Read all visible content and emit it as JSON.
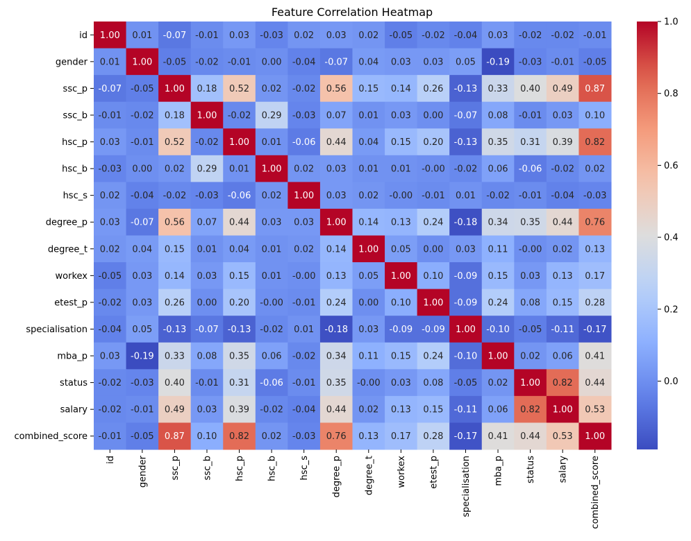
{
  "chart_data": {
    "type": "heatmap",
    "title": "Feature Correlation Heatmap",
    "xlabel": "",
    "ylabel": "",
    "labels": [
      "id",
      "gender",
      "ssc_p",
      "ssc_b",
      "hsc_p",
      "hsc_b",
      "hsc_s",
      "degree_p",
      "degree_t",
      "workex",
      "etest_p",
      "specialisation",
      "mba_p",
      "status",
      "salary",
      "combined_score"
    ],
    "values": [
      [
        1.0,
        0.01,
        -0.07,
        -0.01,
        0.03,
        -0.03,
        0.02,
        0.03,
        0.02,
        -0.05,
        -0.02,
        -0.04,
        0.03,
        -0.02,
        -0.02,
        -0.01
      ],
      [
        0.01,
        1.0,
        -0.05,
        -0.02,
        -0.01,
        0.0,
        -0.04,
        -0.07,
        0.04,
        0.03,
        0.03,
        0.05,
        -0.19,
        -0.03,
        -0.01,
        -0.05
      ],
      [
        -0.07,
        -0.05,
        1.0,
        0.18,
        0.52,
        0.02,
        -0.02,
        0.56,
        0.15,
        0.14,
        0.26,
        -0.13,
        0.33,
        0.4,
        0.49,
        0.87
      ],
      [
        -0.01,
        -0.02,
        0.18,
        1.0,
        -0.02,
        0.29,
        -0.03,
        0.07,
        0.01,
        0.03,
        0.0,
        -0.07,
        0.08,
        -0.01,
        0.03,
        0.1
      ],
      [
        0.03,
        -0.01,
        0.52,
        -0.02,
        1.0,
        0.01,
        -0.06,
        0.44,
        0.04,
        0.15,
        0.2,
        -0.13,
        0.35,
        0.31,
        0.39,
        0.82
      ],
      [
        -0.03,
        0.0,
        0.02,
        0.29,
        0.01,
        1.0,
        0.02,
        0.03,
        0.01,
        0.01,
        -0.0,
        -0.02,
        0.06,
        -0.06,
        -0.02,
        0.02
      ],
      [
        0.02,
        -0.04,
        -0.02,
        -0.03,
        -0.06,
        0.02,
        1.0,
        0.03,
        0.02,
        -0.0,
        -0.01,
        0.01,
        -0.02,
        -0.01,
        -0.04,
        -0.03
      ],
      [
        0.03,
        -0.07,
        0.56,
        0.07,
        0.44,
        0.03,
        0.03,
        1.0,
        0.14,
        0.13,
        0.24,
        -0.18,
        0.34,
        0.35,
        0.44,
        0.76
      ],
      [
        0.02,
        0.04,
        0.15,
        0.01,
        0.04,
        0.01,
        0.02,
        0.14,
        1.0,
        0.05,
        0.0,
        0.03,
        0.11,
        -0.0,
        0.02,
        0.13
      ],
      [
        -0.05,
        0.03,
        0.14,
        0.03,
        0.15,
        0.01,
        -0.0,
        0.13,
        0.05,
        1.0,
        0.1,
        -0.09,
        0.15,
        0.03,
        0.13,
        0.17
      ],
      [
        -0.02,
        0.03,
        0.26,
        0.0,
        0.2,
        -0.0,
        -0.01,
        0.24,
        0.0,
        0.1,
        1.0,
        -0.09,
        0.24,
        0.08,
        0.15,
        0.28
      ],
      [
        -0.04,
        0.05,
        -0.13,
        -0.07,
        -0.13,
        -0.02,
        0.01,
        -0.18,
        0.03,
        -0.09,
        -0.09,
        1.0,
        -0.1,
        -0.05,
        -0.11,
        -0.17
      ],
      [
        0.03,
        -0.19,
        0.33,
        0.08,
        0.35,
        0.06,
        -0.02,
        0.34,
        0.11,
        0.15,
        0.24,
        -0.1,
        1.0,
        0.02,
        0.06,
        0.41
      ],
      [
        -0.02,
        -0.03,
        0.4,
        -0.01,
        0.31,
        -0.06,
        -0.01,
        0.35,
        -0.0,
        0.03,
        0.08,
        -0.05,
        0.02,
        1.0,
        0.82,
        0.44
      ],
      [
        -0.02,
        -0.01,
        0.49,
        0.03,
        0.39,
        -0.02,
        -0.04,
        0.44,
        0.02,
        0.13,
        0.15,
        -0.11,
        0.06,
        0.82,
        1.0,
        0.53
      ],
      [
        -0.01,
        -0.05,
        0.87,
        0.1,
        0.82,
        0.02,
        -0.03,
        0.76,
        0.13,
        0.17,
        0.28,
        -0.17,
        0.41,
        0.44,
        0.53,
        1.0
      ]
    ],
    "value_format": "2 decimals",
    "colormap": "coolwarm",
    "vmin": -0.19,
    "vmax": 1.0,
    "colorbar_ticks": [
      -0.0,
      0.2,
      0.4,
      0.6,
      0.8,
      1.0
    ],
    "colorbar_tick_labels": [
      "0.0",
      "0.2",
      "0.4",
      "0.6",
      "0.8",
      "1.0"
    ],
    "legend": "colorbar-right"
  }
}
